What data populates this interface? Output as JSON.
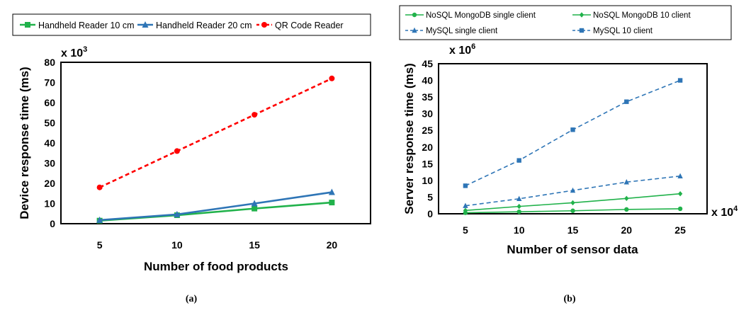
{
  "chart_data": [
    {
      "type": "line",
      "panel_label": "(a)",
      "xlabel": "Number of food products",
      "ylabel": "Device response time (ms)",
      "y_multiplier": "x 10",
      "y_multiplier_exp": "3",
      "x": [
        5,
        10,
        15,
        20
      ],
      "x_ticks": [
        "5",
        "10",
        "15",
        "20"
      ],
      "xlim": [
        2.5,
        22.5
      ],
      "ylim": [
        0,
        80
      ],
      "y_ticks": [
        0,
        10,
        20,
        30,
        40,
        50,
        60,
        70,
        80
      ],
      "series": [
        {
          "name": "Handheld Reader 10 cm",
          "values": [
            1.5,
            4.2,
            7.5,
            10.5
          ],
          "color": "#21b24b",
          "dash": "solid",
          "marker": "square"
        },
        {
          "name": "Handheld Reader 20 cm",
          "values": [
            1.8,
            4.6,
            10.0,
            15.6
          ],
          "color": "#2e75b6",
          "dash": "solid",
          "marker": "triangle"
        },
        {
          "name": "QR Code Reader",
          "values": [
            18.0,
            36.0,
            54.0,
            72.0
          ],
          "color": "#ff0000",
          "dash": "dashed",
          "marker": "circle"
        }
      ]
    },
    {
      "type": "line",
      "panel_label": "(b)",
      "xlabel": "Number of sensor data",
      "ylabel": "Server response time (ms)",
      "y_multiplier": "x 10",
      "y_multiplier_exp": "6",
      "x_multiplier": "x 10",
      "x_multiplier_exp": "4",
      "x": [
        5,
        10,
        15,
        20,
        25
      ],
      "x_ticks": [
        "5",
        "10",
        "15",
        "20",
        "25"
      ],
      "xlim": [
        2.5,
        27.5
      ],
      "ylim": [
        0,
        45
      ],
      "y_ticks": [
        0,
        5,
        10,
        15,
        20,
        25,
        30,
        35,
        40,
        45
      ],
      "series": [
        {
          "name": "NoSQL MongoDB single client",
          "values": [
            0.3,
            0.6,
            0.9,
            1.3,
            1.5
          ],
          "color": "#21b24b",
          "dash": "solid",
          "marker": "circle"
        },
        {
          "name": "NoSQL MongoDB 10 client",
          "values": [
            1.0,
            2.2,
            3.3,
            4.6,
            6.0
          ],
          "color": "#21b24b",
          "dash": "solid",
          "marker": "diamond"
        },
        {
          "name": "MySQL single client",
          "values": [
            2.4,
            4.5,
            7.0,
            9.5,
            11.3
          ],
          "color": "#2e75b6",
          "dash": "dashed",
          "marker": "triangle"
        },
        {
          "name": "MySQL 10 client",
          "values": [
            8.4,
            16.0,
            25.2,
            33.6,
            40.0
          ],
          "color": "#2e75b6",
          "dash": "dashed",
          "marker": "square"
        }
      ]
    }
  ]
}
